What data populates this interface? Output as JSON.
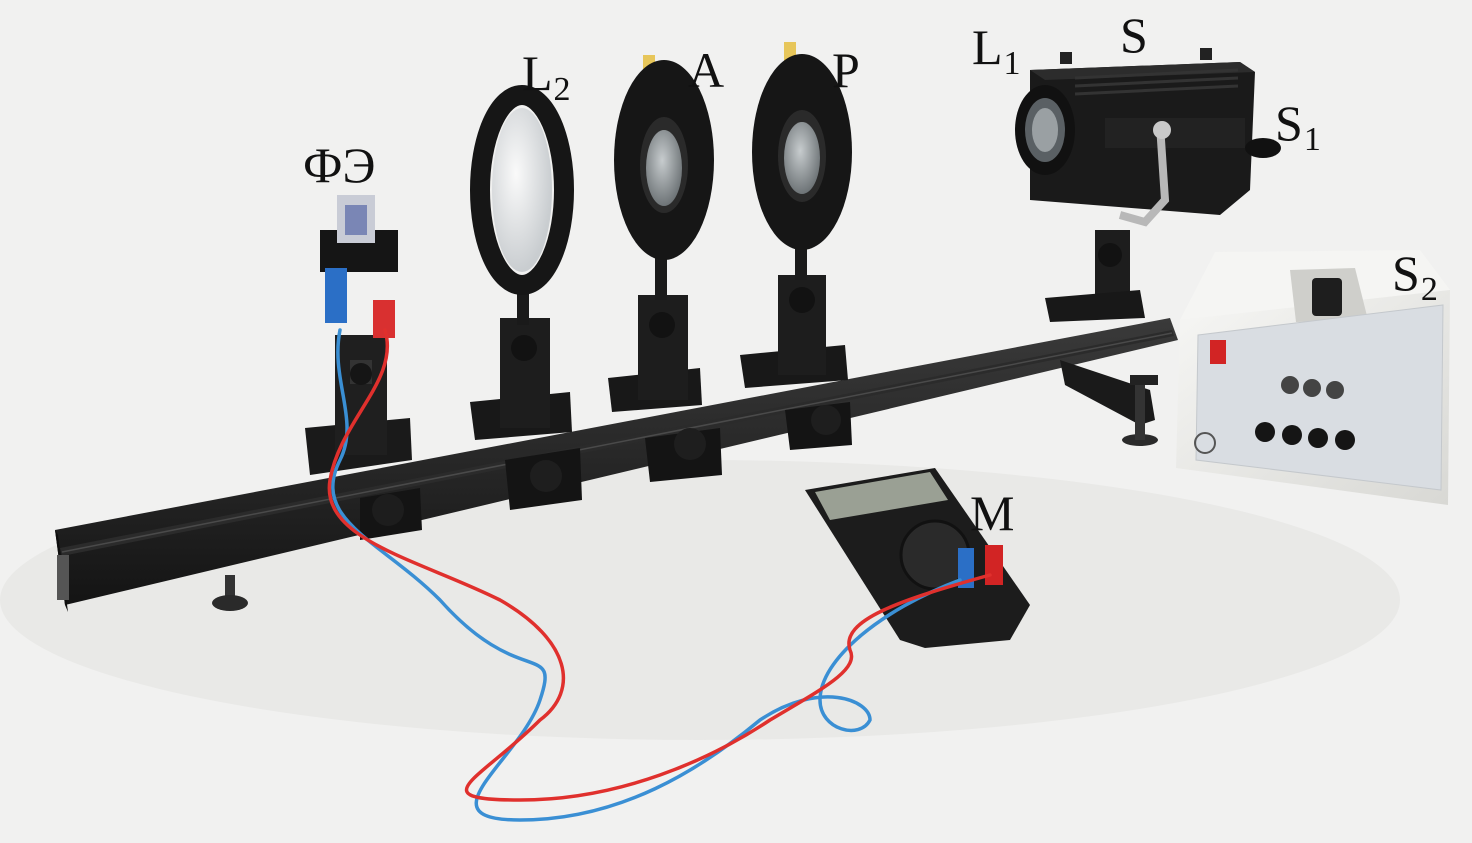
{
  "labels": {
    "photo": "ФЭ",
    "lens2": {
      "main": "L",
      "sub": "2"
    },
    "analyzer": "A",
    "polarizer": "P",
    "lens1": {
      "main": "L",
      "sub": "1"
    },
    "source": "S",
    "source1": {
      "main": "S",
      "sub": "1"
    },
    "source2": {
      "main": "S",
      "sub": "2"
    },
    "meter": "M"
  },
  "colors": {
    "background": "#f1f1f0",
    "rail": "#1c1c1c",
    "red_wire": "#e0302d",
    "blue_wire": "#3a8fd4",
    "filter_yellow": "#e7c65a",
    "power_box": "#ececea",
    "power_panel": "#d9dde2",
    "switch_red": "#d22424"
  },
  "icons": [
    "rail",
    "photocell",
    "lens-holder",
    "analyzer-polarizer",
    "lamp-housing",
    "power-supply",
    "multimeter",
    "cables"
  ]
}
